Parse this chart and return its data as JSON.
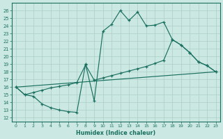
{
  "xlabel": "Humidex (Indice chaleur)",
  "xlim": [
    -0.5,
    23.5
  ],
  "ylim": [
    11.5,
    27.0
  ],
  "ytick_values": [
    12,
    13,
    14,
    15,
    16,
    17,
    18,
    19,
    20,
    21,
    22,
    23,
    24,
    25,
    26
  ],
  "xtick_values": [
    0,
    1,
    2,
    3,
    4,
    5,
    6,
    7,
    8,
    9,
    10,
    11,
    12,
    13,
    14,
    15,
    16,
    17,
    18,
    19,
    20,
    21,
    22,
    23
  ],
  "bg_color": "#cce8e2",
  "grid_color": "#aacfc8",
  "line_color": "#1a7060",
  "curve1_x": [
    0,
    1,
    2,
    3,
    4,
    5,
    6,
    7,
    8,
    9,
    10,
    11,
    12,
    13,
    14,
    15,
    16,
    17,
    18,
    19,
    20,
    21,
    22,
    23
  ],
  "curve1_y": [
    16.0,
    15.0,
    14.8,
    13.8,
    13.3,
    13.0,
    12.8,
    12.7,
    19.0,
    14.2,
    23.3,
    24.2,
    26.0,
    24.7,
    25.8,
    24.0,
    24.1,
    24.5,
    22.2,
    21.5,
    20.5,
    19.3,
    18.8,
    18.0
  ],
  "curve2_x": [
    0,
    1,
    2,
    3,
    4,
    5,
    6,
    7,
    8,
    9,
    10,
    11,
    12,
    13,
    14,
    15,
    16,
    17,
    18,
    19,
    20,
    21,
    22,
    23
  ],
  "curve2_y": [
    16.0,
    15.0,
    15.3,
    15.6,
    15.9,
    16.1,
    16.3,
    16.6,
    18.9,
    16.9,
    17.2,
    17.5,
    17.8,
    18.1,
    18.4,
    18.7,
    19.1,
    19.5,
    22.2,
    21.5,
    20.5,
    19.3,
    18.8,
    18.0
  ],
  "curve3_x": [
    0,
    23
  ],
  "curve3_y": [
    16.0,
    18.0
  ]
}
